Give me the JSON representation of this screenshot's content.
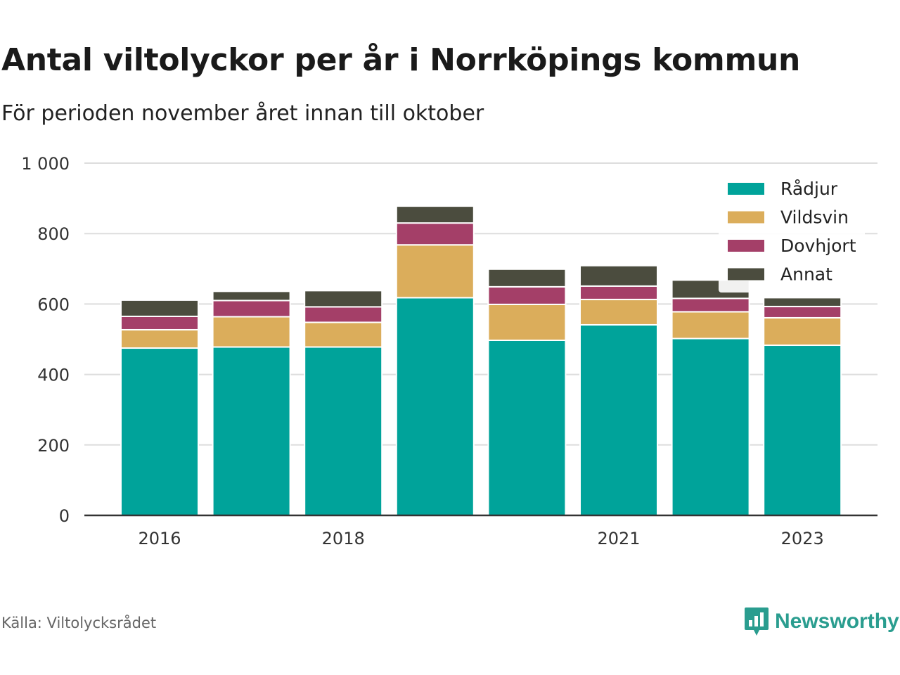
{
  "title": "Antal viltolyckor per år i Norrköpings kommun",
  "subtitle": "För perioden november året innan till oktober",
  "source": "Källa: Viltolycksrådet",
  "brand": "Newsworthy",
  "colors": {
    "Rådjur": "#00a39a",
    "Vildsvin": "#dbad5b",
    "Dovhjort": "#a43f68",
    "Annat": "#4b4c3e",
    "grid": "#dddddd",
    "axis": "#333333",
    "brand": "#2a9d8f"
  },
  "chart_data": {
    "type": "bar",
    "stacked": true,
    "categories": [
      "2016",
      "2017",
      "2018",
      "2019",
      "2020",
      "2021",
      "2022",
      "2023"
    ],
    "x_tick_labels": [
      "2016",
      "",
      "2018",
      "",
      "",
      "2021",
      "",
      "2023"
    ],
    "series": [
      {
        "name": "Rådjur",
        "values": [
          475,
          478,
          478,
          618,
          497,
          541,
          502,
          483
        ]
      },
      {
        "name": "Vildsvin",
        "values": [
          52,
          86,
          70,
          150,
          102,
          72,
          76,
          78
        ]
      },
      {
        "name": "Dovhjort",
        "values": [
          38,
          46,
          44,
          62,
          50,
          38,
          38,
          32
        ]
      },
      {
        "name": "Annat",
        "values": [
          46,
          26,
          46,
          48,
          50,
          58,
          52,
          25
        ]
      }
    ],
    "ylim": [
      0,
      1000
    ],
    "y_ticks": [
      0,
      200,
      400,
      600,
      800,
      1000
    ],
    "y_tick_labels": [
      "0",
      "200",
      "400",
      "600",
      "800",
      "1 000"
    ],
    "grid": true,
    "legend_position": "top-right"
  }
}
